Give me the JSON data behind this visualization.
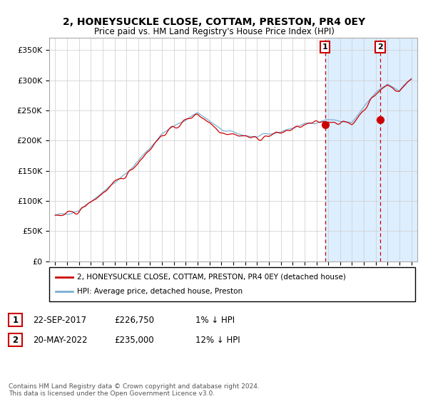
{
  "title": "2, HONEYSUCKLE CLOSE, COTTAM, PRESTON, PR4 0EY",
  "subtitle": "Price paid vs. HM Land Registry's House Price Index (HPI)",
  "ylabel_ticks": [
    "£0",
    "£50K",
    "£100K",
    "£150K",
    "£200K",
    "£250K",
    "£300K",
    "£350K"
  ],
  "ytick_values": [
    0,
    50000,
    100000,
    150000,
    200000,
    250000,
    300000,
    350000
  ],
  "ylim": [
    0,
    370000
  ],
  "xlim_start": 1994.5,
  "xlim_end": 2025.5,
  "sale1_x": 2017.72,
  "sale1_y": 226750,
  "sale1_label": "1",
  "sale2_x": 2022.38,
  "sale2_y": 235000,
  "sale2_label": "2",
  "legend_line1": "2, HONEYSUCKLE CLOSE, COTTAM, PRESTON, PR4 0EY (detached house)",
  "legend_line2": "HPI: Average price, detached house, Preston",
  "ann1_date": "22-SEP-2017",
  "ann1_price": "£226,750",
  "ann1_hpi": "1% ↓ HPI",
  "ann2_date": "20-MAY-2022",
  "ann2_price": "£235,000",
  "ann2_hpi": "12% ↓ HPI",
  "footer": "Contains HM Land Registry data © Crown copyright and database right 2024.\nThis data is licensed under the Open Government Licence v3.0.",
  "hpi_color": "#7bafd4",
  "price_color": "#cc0000",
  "shade_color": "#ddeeff",
  "dashed_line_color": "#cc0000",
  "background_color": "#ffffff",
  "grid_color": "#cccccc"
}
